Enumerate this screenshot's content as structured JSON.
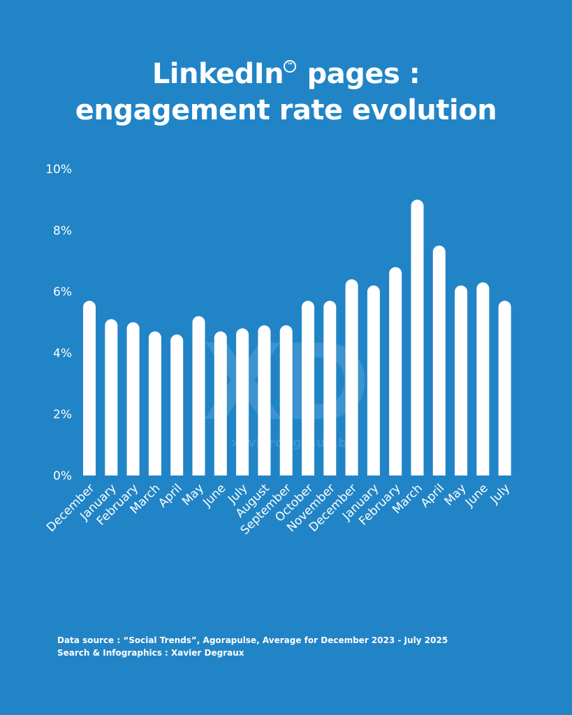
{
  "title": {
    "part1": "LinkedIn",
    "tm": "TM",
    "part2": " pages :",
    "line2": "engagement rate evolution"
  },
  "footer": {
    "source": "Data source :  “Social Trends”, Agorapulse, Average for December 2023 - July 2025",
    "credit": "Search & Infographics : Xavier Degraux"
  },
  "watermark": {
    "logo": "XD",
    "url": "xavierdegraux.be"
  },
  "colors": {
    "background": "#2184c6",
    "bars": "#ffffff",
    "text": "#ffffff"
  },
  "chart_data": {
    "type": "bar",
    "categories": [
      "December",
      "January",
      "February",
      "March",
      "April",
      "May",
      "June",
      "July",
      "August",
      "September",
      "October",
      "November",
      "December",
      "January",
      "February",
      "March",
      "April",
      "May",
      "June",
      "July"
    ],
    "values": [
      5.7,
      5.1,
      5.0,
      4.7,
      4.6,
      5.2,
      4.7,
      4.8,
      4.9,
      4.9,
      5.7,
      5.7,
      6.4,
      6.2,
      6.8,
      9.0,
      7.5,
      6.2,
      6.3,
      5.7
    ],
    "yticks": [
      "0%",
      "2%",
      "4%",
      "6%",
      "8%",
      "10%"
    ],
    "ylim": [
      0,
      10
    ],
    "title": "",
    "xlabel": "",
    "ylabel": "",
    "grid": false
  }
}
